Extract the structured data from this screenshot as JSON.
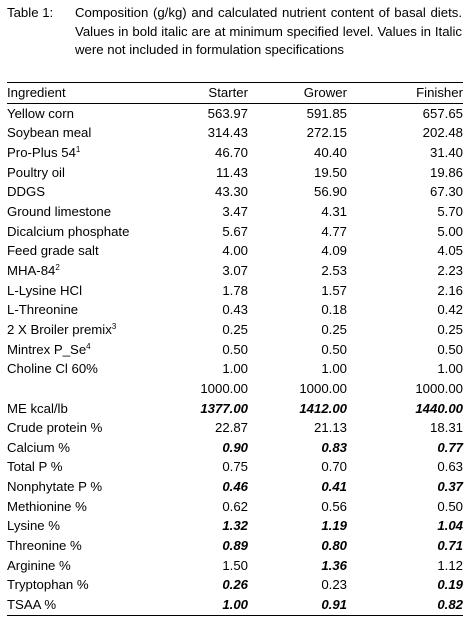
{
  "caption": {
    "label": "Table 1:",
    "text": "Composition (g/kg) and calculated nutrient content of basal diets. Values in bold italic are at minimum specified level. Values in Italic were not included in formulation specifications"
  },
  "table": {
    "headers": [
      "Ingredient",
      "Starter",
      "Grower",
      "Finisher"
    ],
    "rows": [
      {
        "name": "Yellow corn",
        "sup": "",
        "values": [
          "563.97",
          "591.85",
          "657.65"
        ],
        "styles": [
          "",
          "",
          ""
        ]
      },
      {
        "name": "Soybean meal",
        "sup": "",
        "values": [
          "314.43",
          "272.15",
          "202.48"
        ],
        "styles": [
          "",
          "",
          ""
        ]
      },
      {
        "name": "Pro-Plus 54",
        "sup": "1",
        "values": [
          "46.70",
          "40.40",
          "31.40"
        ],
        "styles": [
          "",
          "",
          ""
        ]
      },
      {
        "name": "Poultry oil",
        "sup": "",
        "values": [
          "11.43",
          "19.50",
          "19.86"
        ],
        "styles": [
          "",
          "",
          ""
        ]
      },
      {
        "name": "DDGS",
        "sup": "",
        "values": [
          "43.30",
          "56.90",
          "67.30"
        ],
        "styles": [
          "",
          "",
          ""
        ]
      },
      {
        "name": "Ground limestone",
        "sup": "",
        "values": [
          "3.47",
          "4.31",
          "5.70"
        ],
        "styles": [
          "",
          "",
          ""
        ]
      },
      {
        "name": "Dicalcium phosphate",
        "sup": "",
        "values": [
          "5.67",
          "4.77",
          "5.00"
        ],
        "styles": [
          "",
          "",
          ""
        ]
      },
      {
        "name": "Feed grade salt",
        "sup": "",
        "values": [
          "4.00",
          "4.09",
          "4.05"
        ],
        "styles": [
          "",
          "",
          ""
        ]
      },
      {
        "name": "MHA-84",
        "sup": "2",
        "values": [
          "3.07",
          "2.53",
          "2.23"
        ],
        "styles": [
          "",
          "",
          ""
        ]
      },
      {
        "name": "L-Lysine HCl",
        "sup": "",
        "values": [
          "1.78",
          "1.57",
          "2.16"
        ],
        "styles": [
          "",
          "",
          ""
        ]
      },
      {
        "name": "L-Threonine",
        "sup": "",
        "values": [
          "0.43",
          "0.18",
          "0.42"
        ],
        "styles": [
          "",
          "",
          ""
        ]
      },
      {
        "name": "2 X Broiler premix",
        "sup": "3",
        "values": [
          "0.25",
          "0.25",
          "0.25"
        ],
        "styles": [
          "",
          "",
          ""
        ]
      },
      {
        "name": "Mintrex P_Se",
        "sup": "4",
        "values": [
          "0.50",
          "0.50",
          "0.50"
        ],
        "styles": [
          "",
          "",
          ""
        ]
      },
      {
        "name": "Choline Cl 60%",
        "sup": "",
        "values": [
          "1.00",
          "1.00",
          "1.00"
        ],
        "styles": [
          "",
          "",
          ""
        ]
      },
      {
        "name": "",
        "sup": "",
        "values": [
          "1000.00",
          "1000.00",
          "1000.00"
        ],
        "styles": [
          "",
          "",
          ""
        ]
      },
      {
        "name": "ME kcal/lb",
        "sup": "",
        "values": [
          "1377.00",
          "1412.00",
          "1440.00"
        ],
        "styles": [
          "bi",
          "bi",
          "bi"
        ]
      },
      {
        "name": "Crude protein %",
        "sup": "",
        "values": [
          "22.87",
          "21.13",
          "18.31"
        ],
        "styles": [
          "",
          "",
          ""
        ]
      },
      {
        "name": "Calcium %",
        "sup": "",
        "values": [
          "0.90",
          "0.83",
          "0.77"
        ],
        "styles": [
          "bi",
          "bi",
          "bi"
        ]
      },
      {
        "name": "Total P %",
        "sup": "",
        "values": [
          "0.75",
          "0.70",
          "0.63"
        ],
        "styles": [
          "",
          "",
          ""
        ]
      },
      {
        "name": "Nonphytate P %",
        "sup": "",
        "values": [
          "0.46",
          "0.41",
          "0.37"
        ],
        "styles": [
          "bi",
          "bi",
          "bi"
        ]
      },
      {
        "name": "Methionine %",
        "sup": "",
        "values": [
          "0.62",
          "0.56",
          "0.50"
        ],
        "styles": [
          "",
          "",
          ""
        ]
      },
      {
        "name": "Lysine %",
        "sup": "",
        "values": [
          "1.32",
          "1.19",
          "1.04"
        ],
        "styles": [
          "bi",
          "bi",
          "bi"
        ]
      },
      {
        "name": "Threonine %",
        "sup": "",
        "values": [
          "0.89",
          "0.80",
          "0.71"
        ],
        "styles": [
          "bi",
          "bi",
          "bi"
        ]
      },
      {
        "name": "Arginine %",
        "sup": "",
        "values": [
          "1.50",
          "1.36",
          "1.12"
        ],
        "styles": [
          "",
          "bi",
          ""
        ]
      },
      {
        "name": "Tryptophan %",
        "sup": "",
        "values": [
          "0.26",
          "0.23",
          "0.19"
        ],
        "styles": [
          "bi",
          "",
          "bi"
        ]
      },
      {
        "name": "TSAA %",
        "sup": "",
        "values": [
          "1.00",
          "0.91",
          "0.82"
        ],
        "styles": [
          "bi",
          "bi",
          "bi"
        ]
      }
    ]
  }
}
